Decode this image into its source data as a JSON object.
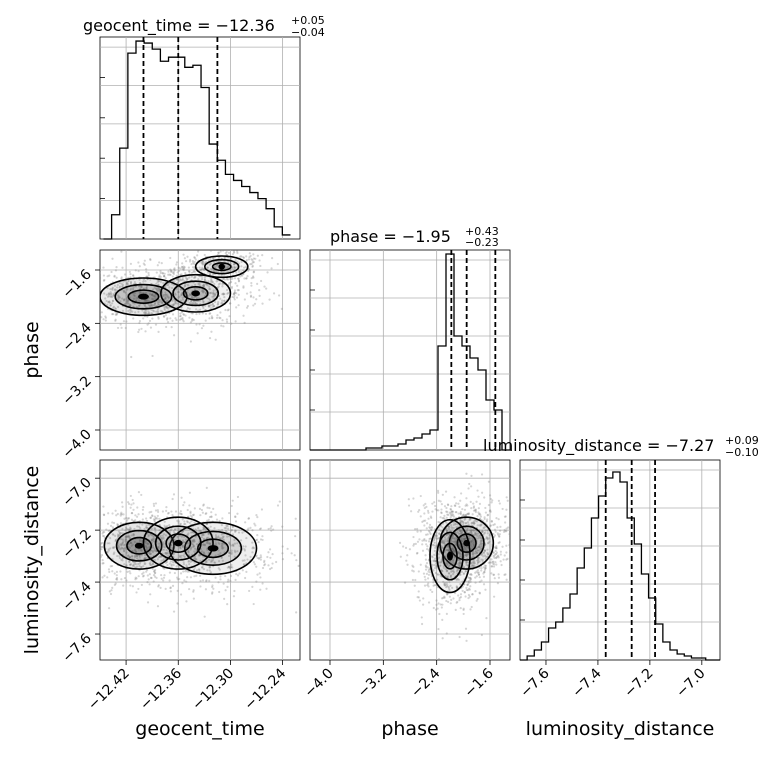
{
  "chart_data": {
    "type": "corner",
    "grid": true,
    "parameters": [
      {
        "name": "geocent_time",
        "label": "geocent_time",
        "range": [
          -12.45,
          -12.22
        ],
        "ticks": [
          -12.42,
          -12.36,
          -12.3,
          -12.24
        ],
        "tick_labels": [
          "−12.42",
          "−12.36",
          "−12.30",
          "−12.24"
        ],
        "title_main": "geocent_time = −12.36",
        "title_sup": "+0.05",
        "title_sub": "−0.04",
        "median": -12.36,
        "q16": -12.4,
        "q84": -12.315,
        "hist_edges_start": -12.446,
        "hist_bin_width": 0.00935,
        "hist": [
          0.0,
          0.12,
          0.45,
          0.92,
          0.98,
          0.97,
          0.94,
          0.88,
          0.9,
          0.9,
          0.85,
          0.86,
          0.75,
          0.47,
          0.39,
          0.32,
          0.29,
          0.26,
          0.23,
          0.2,
          0.15,
          0.06,
          0.02
        ]
      },
      {
        "name": "phase",
        "label": "phase",
        "range": [
          -4.3,
          -1.3
        ],
        "ticks": [
          -4.0,
          -3.2,
          -2.4,
          -1.6
        ],
        "tick_labels": [
          "−4.0",
          "−3.2",
          "−2.4",
          "−1.6"
        ],
        "title_main": "phase = −1.95",
        "title_sup": "+0.43",
        "title_sub": "−0.23",
        "median": -1.95,
        "q16": -2.18,
        "q84": -1.52,
        "hist_edges_start": -4.3,
        "hist_bin_width": 0.12,
        "hist": [
          0.0,
          0.0,
          0.0,
          0.0,
          0.0,
          0.0,
          0.0,
          0.01,
          0.01,
          0.02,
          0.02,
          0.03,
          0.05,
          0.06,
          0.08,
          0.1,
          0.52,
          0.98,
          0.57,
          0.52,
          0.46,
          0.4,
          0.25,
          0.2,
          0.0
        ]
      },
      {
        "name": "luminosity_distance",
        "label": "luminosity_distance",
        "range": [
          -7.7,
          -6.93
        ],
        "ticks": [
          -7.6,
          -7.4,
          -7.2,
          -7.0
        ],
        "tick_labels": [
          "−7.6",
          "−7.4",
          "−7.2",
          "−7.0"
        ],
        "title_main": "luminosity_distance = −7.27",
        "title_sup": "+0.09",
        "title_sub": "−0.10",
        "median": -7.27,
        "q16": -7.37,
        "q84": -7.18,
        "hist_edges_start": -7.7,
        "hist_bin_width": 0.0275,
        "hist": [
          0.0,
          0.02,
          0.05,
          0.09,
          0.16,
          0.19,
          0.26,
          0.33,
          0.46,
          0.56,
          0.71,
          0.82,
          0.91,
          0.94,
          0.89,
          0.71,
          0.58,
          0.43,
          0.31,
          0.18,
          0.09,
          0.05,
          0.03,
          0.02,
          0.01,
          0.01,
          0.0,
          0.0
        ]
      }
    ],
    "pairs": [
      {
        "x": "geocent_time",
        "y": "phase",
        "modes": [
          {
            "x": -12.4,
            "y": -2.0,
            "sx": 0.025,
            "sy": 0.14,
            "w": 1.0
          },
          {
            "x": -12.34,
            "y": -1.95,
            "sx": 0.02,
            "sy": 0.14,
            "w": 0.6
          },
          {
            "x": -12.31,
            "y": -1.55,
            "sx": 0.015,
            "sy": 0.08,
            "w": 0.45
          }
        ]
      },
      {
        "x": "geocent_time",
        "y": "luminosity_distance",
        "modes": [
          {
            "x": -12.405,
            "y": -7.26,
            "sx": 0.02,
            "sy": 0.045,
            "w": 1.0
          },
          {
            "x": -12.32,
            "y": -7.27,
            "sx": 0.025,
            "sy": 0.05,
            "w": 0.7
          },
          {
            "x": -12.36,
            "y": -7.25,
            "sx": 0.02,
            "sy": 0.05,
            "w": 0.4
          }
        ]
      },
      {
        "x": "phase",
        "y": "luminosity_distance",
        "modes": [
          {
            "x": -1.95,
            "y": -7.25,
            "sx": 0.2,
            "sy": 0.05,
            "w": 1.0
          },
          {
            "x": -2.2,
            "y": -7.3,
            "sx": 0.15,
            "sy": 0.07,
            "w": 0.6
          }
        ]
      }
    ]
  }
}
